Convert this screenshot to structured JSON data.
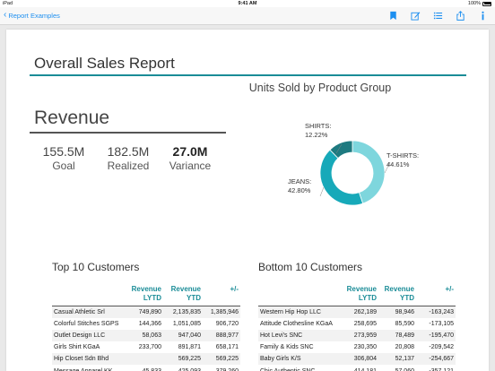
{
  "status_bar": {
    "carrier": "iPad",
    "time": "9:41 AM",
    "battery": "100%"
  },
  "nav": {
    "back_label": "Report Examples",
    "icons": [
      "bookmark-icon",
      "edit-icon",
      "list-icon",
      "share-icon",
      "info-icon"
    ],
    "accent": "#1d8ff0"
  },
  "report": {
    "title": "Overall Sales Report",
    "revenue": {
      "title": "Revenue",
      "kpis": [
        {
          "value": "155.5M",
          "label": "Goal"
        },
        {
          "value": "182.5M",
          "label": "Realized"
        },
        {
          "value": "27.0M",
          "label": "Variance"
        }
      ]
    },
    "chart": {
      "title": "Units Sold by Product Group",
      "labels": {
        "shirts": [
          "SHIRTS:",
          "12.22%"
        ],
        "tshirts": [
          "T-SHIRTS:",
          "44.61%"
        ],
        "jeans": [
          "JEANS:",
          "42.80%"
        ]
      }
    },
    "top10": {
      "title": "Top 10 Customers",
      "headers": [
        "Revenue LYTD",
        "Revenue YTD",
        "+/-"
      ],
      "rows": [
        [
          "Casual Athletic Srl",
          "749,890",
          "2,135,835",
          "1,385,946"
        ],
        [
          "Colorful Stitches SGPS",
          "144,366",
          "1,051,085",
          "906,720"
        ],
        [
          "Outlet Design LLC",
          "58,063",
          "947,040",
          "888,977"
        ],
        [
          "Girls Shirt KGaA",
          "233,700",
          "891,871",
          "658,171"
        ],
        [
          "Hip Closet Sdn Bhd",
          "",
          "569,225",
          "569,225"
        ],
        [
          "Message Apparel KK",
          "45,833",
          "425,093",
          "379,260"
        ]
      ]
    },
    "bottom10": {
      "title": "Bottom 10 Customers",
      "headers": [
        "Revenue LYTD",
        "Revenue YTD",
        "+/-"
      ],
      "rows": [
        [
          "Western Hip Hop LLC",
          "262,189",
          "98,946",
          "-163,243"
        ],
        [
          "Attitude Clothesline KGaA",
          "258,695",
          "85,590",
          "-173,105"
        ],
        [
          "Hot Levi's SNC",
          "273,959",
          "78,489",
          "-195,470"
        ],
        [
          "Family & Kids SNC",
          "230,350",
          "20,808",
          "-209,542"
        ],
        [
          "Baby Girls K/S",
          "306,804",
          "52,137",
          "-254,667"
        ],
        [
          "Chic Authentic SNC",
          "414,181",
          "57,060",
          "-357,121"
        ]
      ]
    }
  },
  "chart_data": {
    "type": "pie",
    "title": "Units Sold by Product Group",
    "categories": [
      "T-SHIRTS",
      "JEANS",
      "SHIRTS"
    ],
    "values": [
      44.61,
      42.8,
      12.22
    ],
    "colors": [
      "#7ed6dd",
      "#17a9b9",
      "#1e7a80"
    ],
    "donut": true
  }
}
